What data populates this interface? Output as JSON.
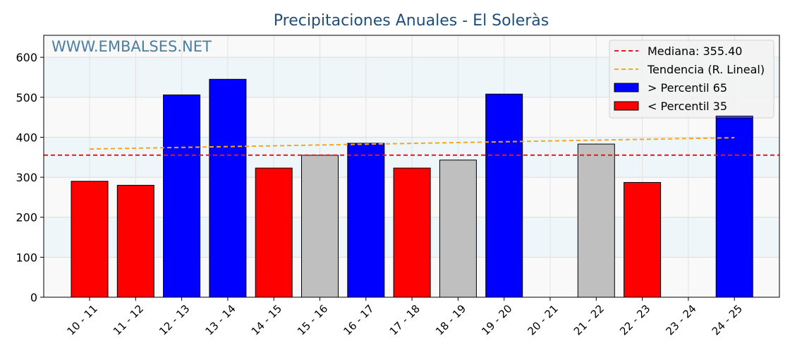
{
  "chart_data": {
    "type": "bar",
    "title": "Precipitaciones Anuales - El Soleràs",
    "watermark": "WWW.EMBALSES.NET",
    "xlabel": "",
    "ylabel": "",
    "ylim": [
      0,
      655
    ],
    "yticks": [
      0,
      100,
      200,
      300,
      400,
      500,
      600
    ],
    "categories": [
      "10 - 11",
      "11 - 12",
      "12 - 13",
      "13 - 14",
      "14 - 15",
      "15 - 16",
      "16 - 17",
      "17 - 18",
      "18 - 19",
      "19 - 20",
      "20 - 21",
      "21 - 22",
      "22 - 23",
      "23 - 24",
      "24 - 25"
    ],
    "values": [
      290,
      280,
      506,
      545,
      323,
      355,
      385,
      323,
      343,
      508,
      0,
      383,
      287,
      0,
      453
    ],
    "bar_classes": [
      "low",
      "low",
      "high",
      "high",
      "low",
      "mid",
      "high",
      "low",
      "mid",
      "high",
      "none",
      "mid",
      "low",
      "none",
      "high"
    ],
    "median": 355.4,
    "trend": [
      370.6,
      398.9
    ],
    "grid": true,
    "legend_position": "top-right",
    "legend": [
      {
        "label": "Mediana: 355.40",
        "kind": "median-line"
      },
      {
        "label": "Tendencia (R. Lineal)",
        "kind": "trend-line"
      },
      {
        "label": " > Percentil 65",
        "kind": "high"
      },
      {
        "label": " < Percentil 35",
        "kind": "low"
      }
    ],
    "colors": {
      "high": "#0000ff",
      "low": "#ff0000",
      "mid": "#bfbfbf",
      "median": "#e31a1c",
      "trend": "#f5a623",
      "title": "#1f4e79",
      "watermark": "#4a7fa0",
      "band": "#eef6f9",
      "plot_bg": "#f9f9f9"
    }
  }
}
